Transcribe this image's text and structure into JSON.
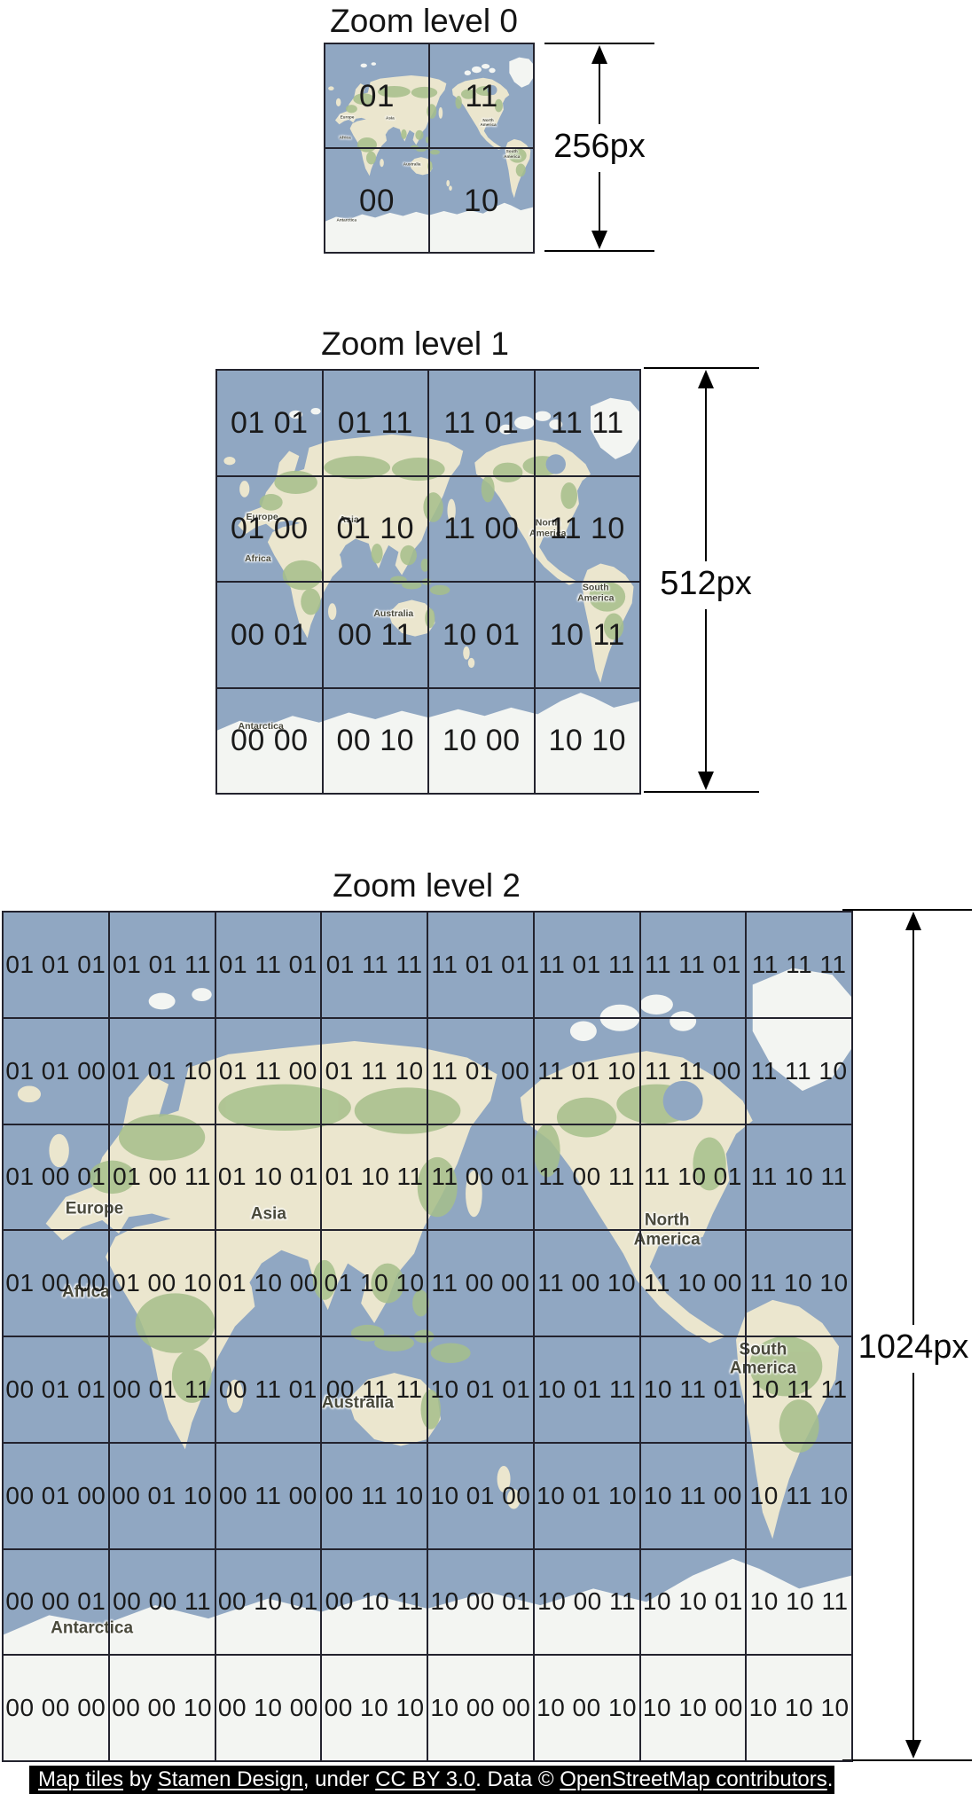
{
  "colors": {
    "ocean": "#90a7c2",
    "land": "#ebe6ce",
    "vegetation": "#a6bf8b",
    "ice": "#f3f5f2",
    "grid_line": "#23232e",
    "tile_label": "#1a1a1a",
    "map_label": "#4a4a3c",
    "dim_line": "#000000",
    "attribution_bg": "#000000",
    "attribution_fg": "#ffffff"
  },
  "sections": [
    {
      "title": "Zoom level 0",
      "size_label": "256px",
      "tiles_per_side": 2,
      "grid": [
        [
          "01",
          "11"
        ],
        [
          "00",
          "10"
        ]
      ],
      "continent_labels": [
        "Europe",
        "Asia",
        "North America",
        "Africa",
        "South America",
        "Australia",
        "Antarctica"
      ]
    },
    {
      "title": "Zoom level 1",
      "size_label": "512px",
      "tiles_per_side": 4,
      "grid": [
        [
          "01 01",
          "01 11",
          "11 01",
          "11 11"
        ],
        [
          "01 00",
          "01 10",
          "11 00",
          "11 10"
        ],
        [
          "00 01",
          "00 11",
          "10 01",
          "10 11"
        ],
        [
          "00 00",
          "00 10",
          "10 00",
          "10 10"
        ]
      ],
      "continent_labels": [
        "Europe",
        "Asia",
        "North America",
        "Africa",
        "South America",
        "Australia",
        "Antarctica"
      ]
    },
    {
      "title": "Zoom level 2",
      "size_label": "1024px",
      "tiles_per_side": 8,
      "grid": [
        [
          "01 01 01",
          "01 01 11",
          "01 11 01",
          "01 11 11",
          "11 01 01",
          "11 01 11",
          "11 11 01",
          "11 11 11"
        ],
        [
          "01 01 00",
          "01 01 10",
          "01 11 00",
          "01 11 10",
          "11 01 00",
          "11 01 10",
          "11 11 00",
          "11 11 10"
        ],
        [
          "01 00 01",
          "01 00 11",
          "01 10 01",
          "01 10 11",
          "11 00 01",
          "11 00 11",
          "11 10 01",
          "11 10 11"
        ],
        [
          "01 00 00",
          "01 00 10",
          "01 10 00",
          "01 10 10",
          "11 00 00",
          "11 00 10",
          "11 10 00",
          "11 10 10"
        ],
        [
          "00 01 01",
          "00 01 11",
          "00 11 01",
          "00 11 11",
          "10 01 01",
          "10 01 11",
          "10 11 01",
          "10 11 11"
        ],
        [
          "00 01 00",
          "00 01 10",
          "00 11 00",
          "00 11 10",
          "10 01 00",
          "10 01 10",
          "10 11 00",
          "10 11 10"
        ],
        [
          "00 00 01",
          "00 00 11",
          "00 10 01",
          "00 10 11",
          "10 00 01",
          "10 00 11",
          "10 10 01",
          "10 10 11"
        ],
        [
          "00 00 00",
          "00 00 10",
          "00 10 00",
          "00 10 10",
          "10 00 00",
          "10 00 10",
          "10 10 00",
          "10 10 10"
        ]
      ],
      "continent_labels": [
        "Europe",
        "Asia",
        "North America",
        "Africa",
        "South America",
        "Australia",
        "Antarctica"
      ]
    }
  ],
  "attribution": {
    "segments": [
      {
        "text": "Map tiles",
        "link": true
      },
      {
        "text": " by ",
        "link": false
      },
      {
        "text": "Stamen Design",
        "link": true
      },
      {
        "text": ", under ",
        "link": false
      },
      {
        "text": "CC BY 3.0",
        "link": true
      },
      {
        "text": ". Data © ",
        "link": false
      },
      {
        "text": "OpenStreetMap contributors",
        "link": true
      },
      {
        "text": ".",
        "link": false
      }
    ]
  }
}
